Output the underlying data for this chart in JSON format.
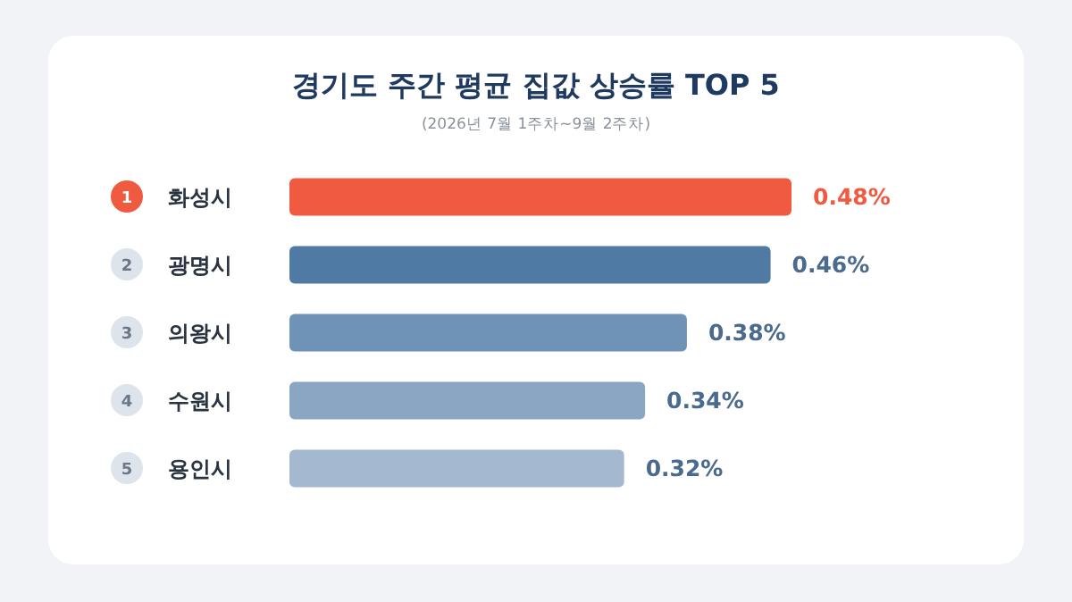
{
  "chart_data": {
    "type": "bar",
    "orientation": "horizontal",
    "title": "경기도 주간 평균 집값 상승률 TOP 5",
    "subtitle": "(2026년 7월 1주차~9월 2주차)",
    "categories": [
      "화성시",
      "광명시",
      "의왕시",
      "수원시",
      "용인시"
    ],
    "values": [
      0.48,
      0.46,
      0.38,
      0.34,
      0.32
    ],
    "colors": [
      "#f05a40",
      "#4f7aa3",
      "#6e93b6",
      "#8ba6c3",
      "#a4b8cf"
    ],
    "value_labels": [
      "0.48%",
      "0.46%",
      "0.38%",
      "0.34%",
      "0.32%"
    ],
    "annotations": [
      "1",
      "2",
      "3",
      "4",
      "5"
    ]
  }
}
